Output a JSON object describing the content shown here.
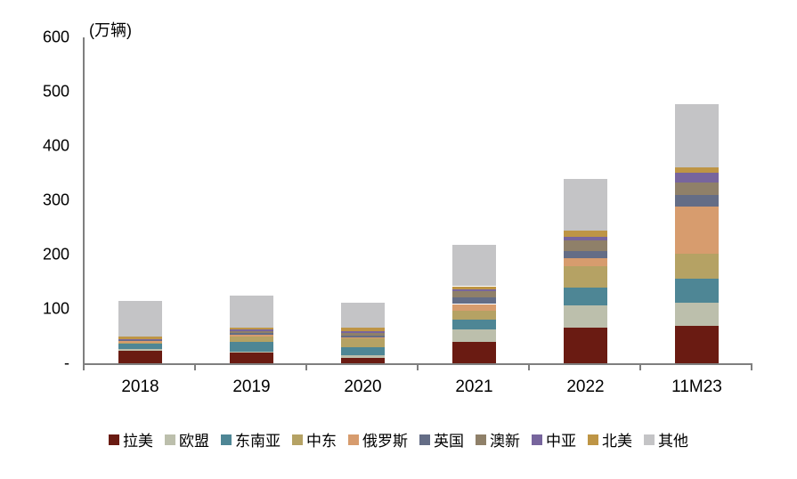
{
  "chart_data": {
    "type": "bar",
    "stacked": true,
    "title": "",
    "unit_label": "(万辆)",
    "categories": [
      "2018",
      "2019",
      "2020",
      "2021",
      "2022",
      "11M23"
    ],
    "series": [
      {
        "name": "拉美",
        "color": "#6A1B12",
        "values": [
          23,
          20,
          10,
          39,
          65,
          69
        ]
      },
      {
        "name": "欧盟",
        "color": "#BCBFAC",
        "values": [
          3,
          2,
          5,
          23,
          41,
          43
        ]
      },
      {
        "name": "东南亚",
        "color": "#4E8695",
        "values": [
          10,
          18,
          15,
          19,
          34,
          43
        ]
      },
      {
        "name": "中东",
        "color": "#B5A264",
        "values": [
          2,
          9,
          16,
          16,
          38,
          46
        ]
      },
      {
        "name": "俄罗斯",
        "color": "#D79C6E",
        "values": [
          3.5,
          3.5,
          2,
          12,
          15,
          88
        ]
      },
      {
        "name": "英国",
        "color": "#646D86",
        "values": [
          1,
          3.5,
          3.5,
          11.5,
          13,
          21
        ]
      },
      {
        "name": "澳新",
        "color": "#8F8069",
        "values": [
          1,
          3.5,
          3.5,
          11.5,
          21,
          23
        ]
      },
      {
        "name": "中亚",
        "color": "#77659D",
        "values": [
          1,
          3.3,
          3.3,
          3.3,
          6.5,
          18
        ]
      },
      {
        "name": "北美",
        "color": "#BE9545",
        "values": [
          5,
          3.3,
          6.5,
          6.5,
          11.5,
          10
        ]
      },
      {
        "name": "其他",
        "color": "#C4C4C6",
        "values": [
          66,
          58,
          46,
          76.5,
          94,
          116
        ]
      }
    ],
    "totals": [
      115.5,
      124.1,
      110.8,
      218.3,
      339,
      477
    ],
    "ylim": [
      0,
      600
    ],
    "yticks": [
      {
        "value": 0,
        "label": "-"
      },
      {
        "value": 100,
        "label": "100"
      },
      {
        "value": 200,
        "label": "200"
      },
      {
        "value": 300,
        "label": "300"
      },
      {
        "value": 400,
        "label": "400"
      },
      {
        "value": 500,
        "label": "500"
      },
      {
        "value": 600,
        "label": "600"
      }
    ],
    "grid": false,
    "legend_position": "bottom",
    "axis_color": "#7F7F7F"
  }
}
